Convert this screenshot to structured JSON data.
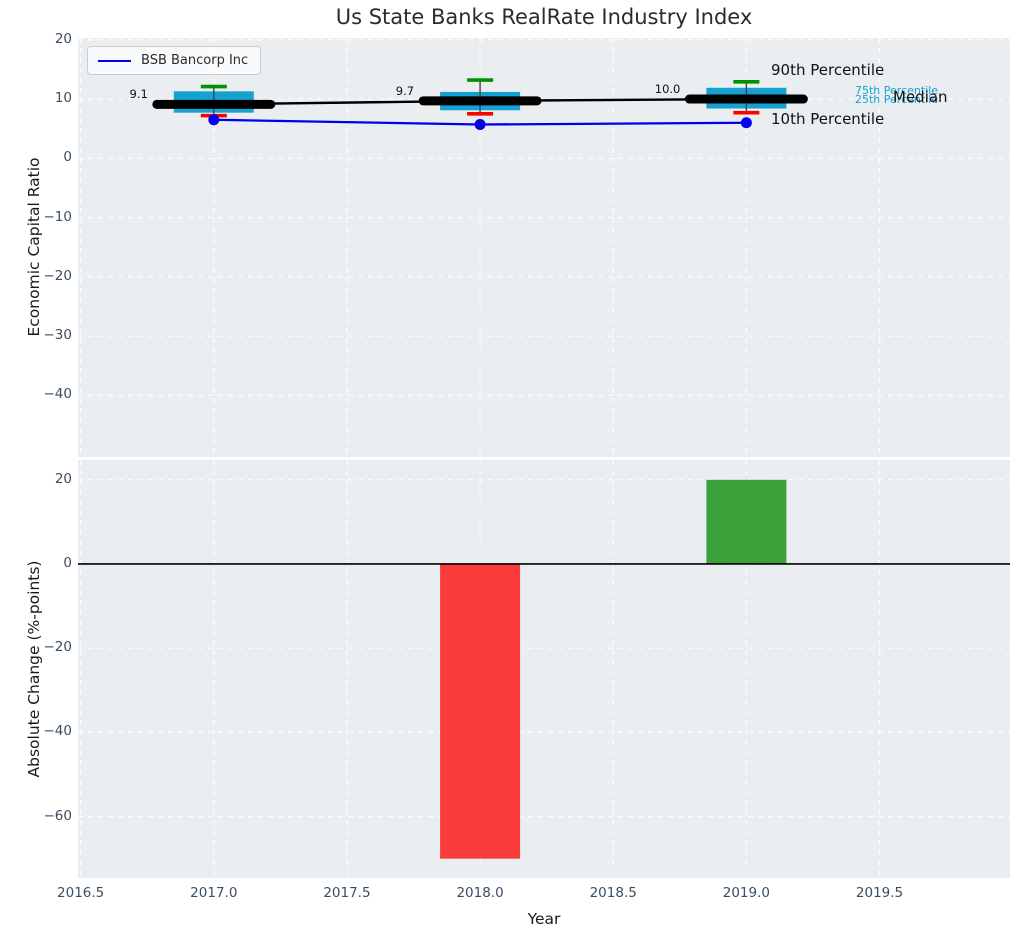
{
  "title": "Us State Banks RealRate Industry Index",
  "legend": {
    "label": "BSB Bancorp Inc"
  },
  "annotations": {
    "p90": "90th Percentile",
    "p75": "75th Percentile",
    "p25": "25th Percentile",
    "median": "Median",
    "p10": "10th Percentile"
  },
  "colors": {
    "box_fill": "#16a1d3",
    "whisker": "#444444",
    "cap_high": "#029102",
    "cap_low": "#ff0000",
    "median_line": "#000000",
    "company_line": "#0000ee",
    "bar_negative": "#fa3b3b",
    "bar_positive": "#3ba13b",
    "grid": "#ffffff",
    "axes_bg": "#eaeef1",
    "tick_text": "#3a4e63"
  },
  "chart_data": [
    {
      "type": "boxplot",
      "title": "Us State Banks RealRate Industry Index",
      "ylabel": "Economic Capital Ratio",
      "xlim": [
        2016.49,
        2019.99
      ],
      "ylim": [
        -50.4,
        20.3
      ],
      "grid": "white dashed, on",
      "legend_position": "upper left",
      "ytick_values": [
        20,
        10,
        0,
        -10,
        -20,
        -30,
        -40
      ],
      "ytick_labels": [
        "20",
        "10",
        "0",
        "−10",
        "−20",
        "−30",
        "−40"
      ],
      "xtick_values": [
        2016.5,
        2017.0,
        2017.5,
        2018.0,
        2018.5,
        2019.0,
        2019.5
      ],
      "boxes": [
        {
          "x": 2017,
          "median": 9.1,
          "q1": 7.7,
          "q3": 11.3,
          "whisker_low": 7.2,
          "whisker_high": 12.1,
          "label": "9.1"
        },
        {
          "x": 2018,
          "median": 9.7,
          "q1": 8.1,
          "q3": 11.2,
          "whisker_low": 7.5,
          "whisker_high": 13.2,
          "label": "9.7"
        },
        {
          "x": 2019,
          "median": 10.0,
          "q1": 8.4,
          "q3": 11.9,
          "whisker_low": 7.7,
          "whisker_high": 12.9,
          "label": "10.0"
        }
      ],
      "median_series": {
        "name": "Median",
        "x": [
          2017,
          2018,
          2019
        ],
        "y": [
          9.1,
          9.7,
          10.0
        ]
      },
      "company_series": {
        "name": "BSB Bancorp Inc",
        "x": [
          2017,
          2018,
          2019
        ],
        "y": [
          6.5,
          5.7,
          6.0
        ]
      }
    },
    {
      "type": "bar",
      "ylabel": "Absolute Change (%-points)",
      "xlabel": "Year",
      "xlim": [
        2016.49,
        2019.99
      ],
      "ylim": [
        -74.6,
        24.7
      ],
      "grid": "white dashed, on",
      "zero_line": true,
      "ytick_values": [
        20,
        0,
        -20,
        -40,
        -60
      ],
      "ytick_labels": [
        "20",
        "0",
        "−20",
        "−40",
        "−60"
      ],
      "xtick_values": [
        2016.5,
        2017.0,
        2017.5,
        2018.0,
        2018.5,
        2019.0,
        2019.5
      ],
      "xtick_labels": [
        "2016.5",
        "2017.0",
        "2017.5",
        "2018.0",
        "2018.5",
        "2019.0",
        "2019.5"
      ],
      "bars": [
        {
          "x": 2018,
          "value": -70,
          "color": "#fa3b3b"
        },
        {
          "x": 2019,
          "value": 20,
          "color": "#3ba13b"
        }
      ]
    }
  ]
}
